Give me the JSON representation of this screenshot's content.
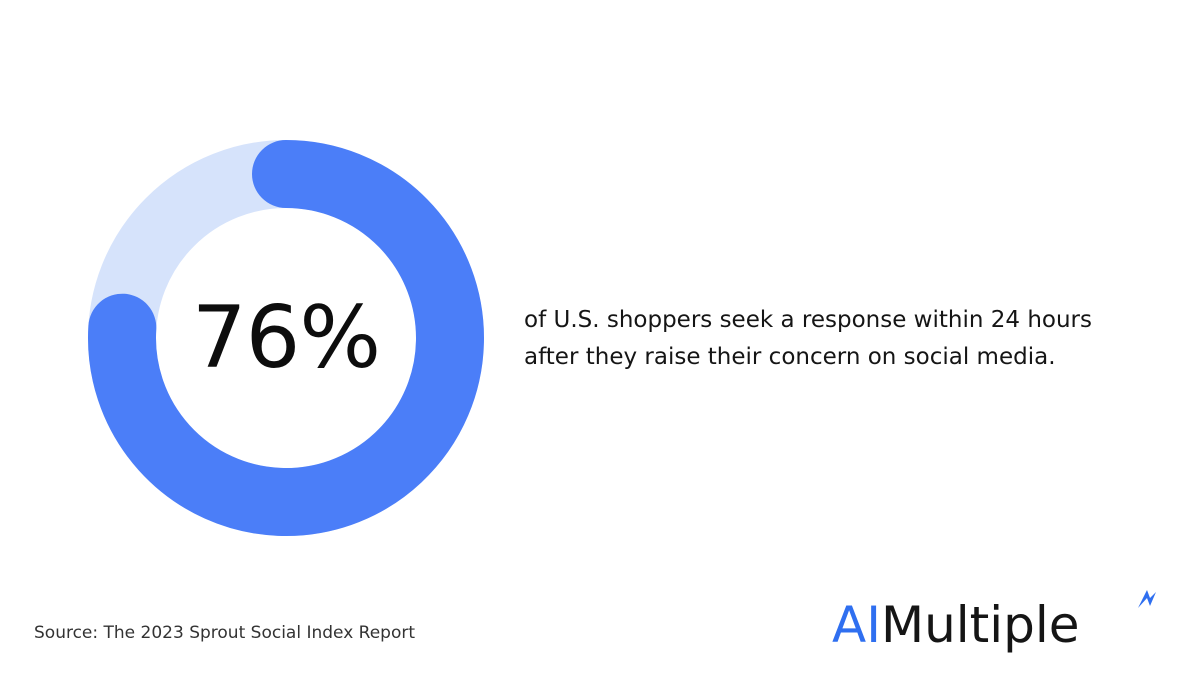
{
  "chart_data": {
    "type": "pie",
    "values": [
      76,
      24
    ],
    "value_label": "76%",
    "caption_lines": [
      "of U.S. shoppers seek a response within 24 hours",
      "after they raise their concern on social media."
    ],
    "colors": {
      "primary": "#4b7ef8",
      "track": "#d6e3fb"
    }
  },
  "source": "Source: The 2023 Sprout Social Index Report",
  "logo": {
    "ai": "AI",
    "rest": "Multiple",
    "mark_icon": "spark-icon",
    "colors": {
      "ai": "#2f6ff0",
      "rest": "#151515"
    }
  }
}
